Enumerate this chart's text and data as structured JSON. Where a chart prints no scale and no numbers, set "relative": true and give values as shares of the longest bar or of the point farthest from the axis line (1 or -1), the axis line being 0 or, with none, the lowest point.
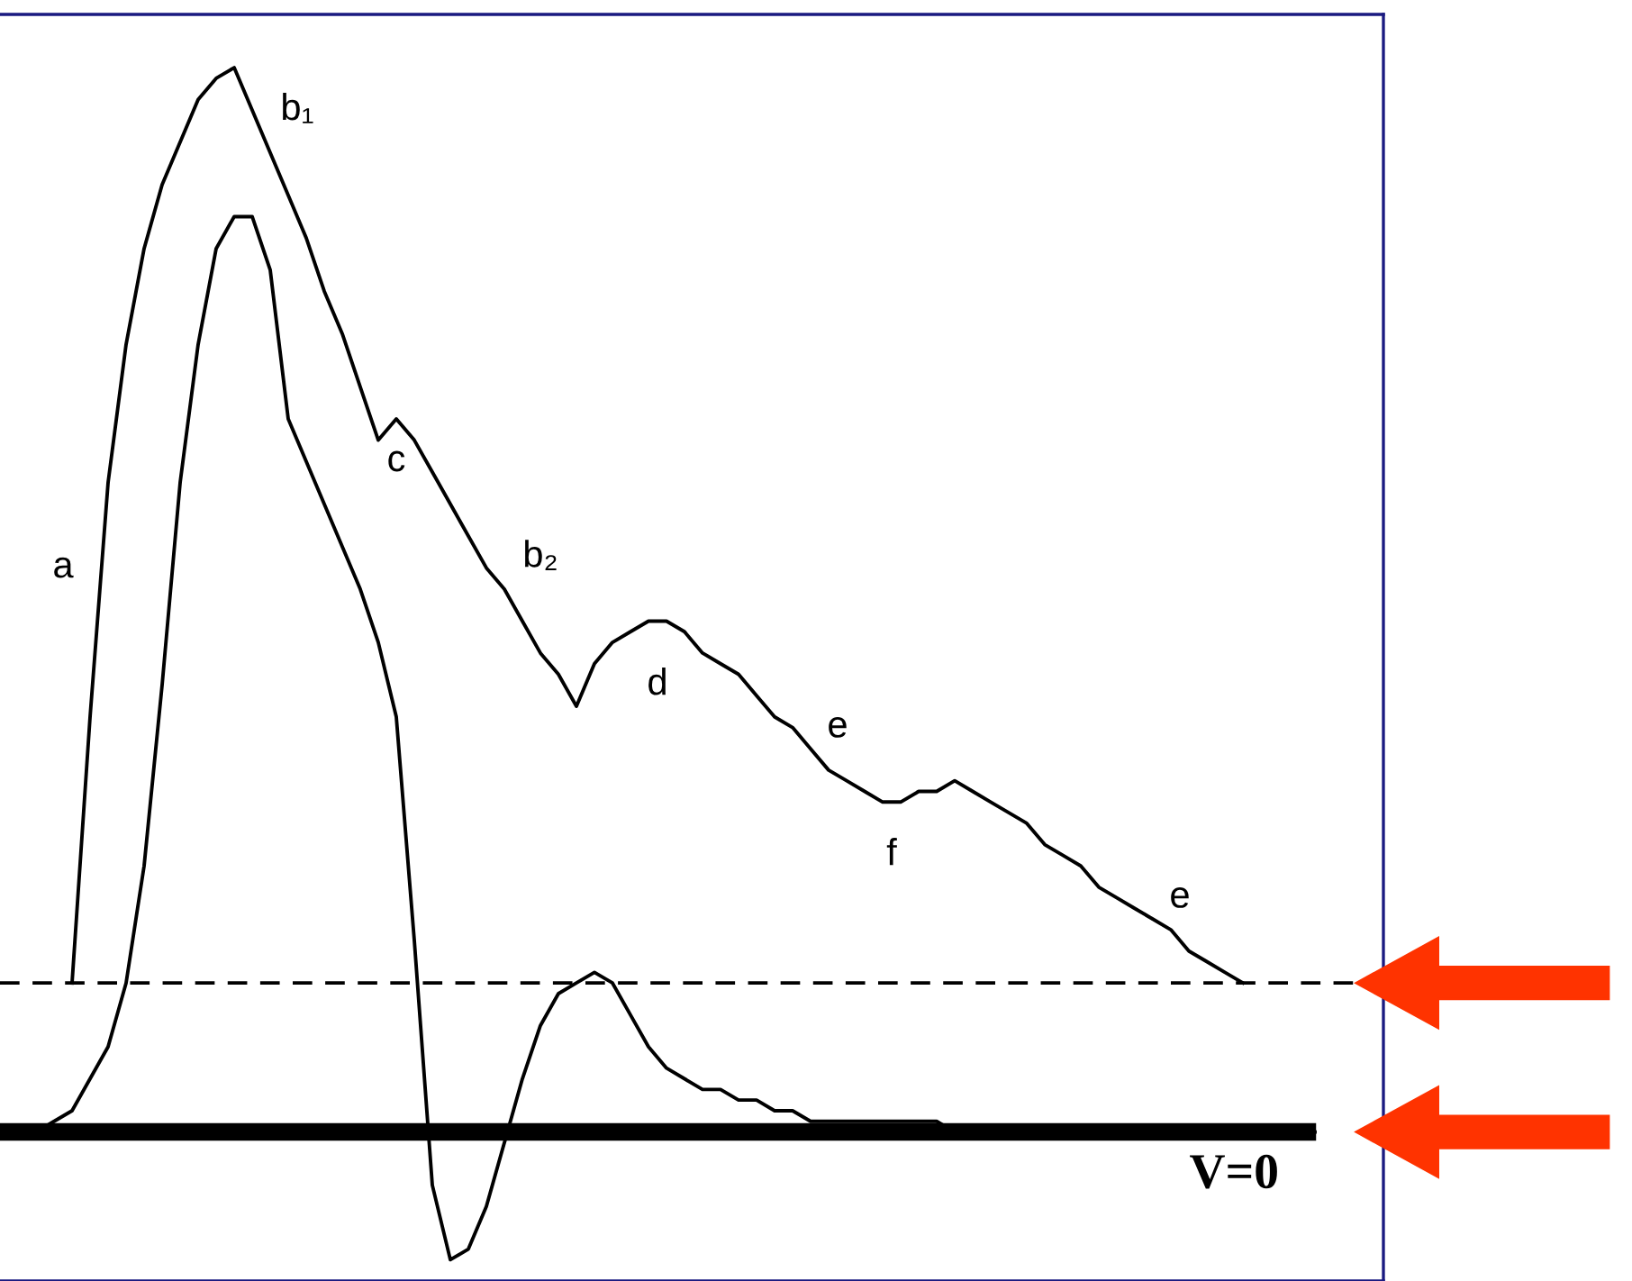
{
  "chart_data": {
    "type": "line",
    "relative": true,
    "categories": [
      null,
      null,
      null,
      null,
      null,
      null,
      null,
      null,
      null,
      null,
      null,
      null,
      null,
      null,
      null,
      null,
      null,
      null,
      null,
      null,
      null,
      null,
      null,
      null,
      null,
      null,
      null,
      null,
      null,
      null,
      null,
      null,
      null,
      null,
      null,
      null,
      null,
      null,
      null,
      null,
      null,
      null,
      null,
      null,
      null,
      null,
      null,
      null,
      null,
      null,
      null,
      null,
      null,
      null,
      null,
      null,
      null,
      null,
      null,
      null,
      null,
      null,
      null,
      null,
      null,
      null,
      null,
      null,
      null,
      null,
      null,
      null
    ],
    "series": [
      {
        "color": "#000000",
        "values": [
          null,
          null,
          0.14,
          0.39,
          0.61,
          0.74,
          0.83,
          0.89,
          0.93,
          0.97,
          0.99,
          1.0,
          0.96,
          0.92,
          0.88,
          0.84,
          0.79,
          0.75,
          0.7,
          0.65,
          0.67,
          0.65,
          0.62,
          0.59,
          0.56,
          0.53,
          0.51,
          0.48,
          0.45,
          0.43,
          0.4,
          0.44,
          0.46,
          0.47,
          0.48,
          0.48,
          0.47,
          0.45,
          0.44,
          0.43,
          0.41,
          0.39,
          0.38,
          0.36,
          0.34,
          0.33,
          0.32,
          0.31,
          0.31,
          0.32,
          0.32,
          0.33,
          0.32,
          0.31,
          0.3,
          0.29,
          0.27,
          0.26,
          0.25,
          0.23,
          0.22,
          0.21,
          0.2,
          0.19,
          0.17,
          0.16,
          0.15,
          0.14,
          null,
          null,
          null,
          null
        ]
      },
      {
        "color": "#000000",
        "values": [
          0,
          0.01,
          0.02,
          0.05,
          0.08,
          0.14,
          0.25,
          0.42,
          0.61,
          0.74,
          0.83,
          0.86,
          0.86,
          0.81,
          0.67,
          0.63,
          0.59,
          0.55,
          0.51,
          0.46,
          0.39,
          0.18,
          -0.05,
          -0.12,
          -0.11,
          -0.07,
          -0.01,
          0.05,
          0.1,
          0.13,
          0.14,
          0.15,
          0.14,
          0.11,
          0.08,
          0.06,
          0.05,
          0.04,
          0.04,
          0.03,
          0.03,
          0.02,
          0.02,
          0.01,
          0.01,
          0.01,
          0.01,
          0.01,
          0.01,
          0.01,
          0.01,
          0,
          0,
          0,
          0,
          0,
          0,
          0,
          0,
          0,
          0,
          0,
          0,
          0,
          0,
          0,
          0,
          0,
          0,
          0,
          0,
          0
        ]
      }
    ],
    "ref_lines": [
      {
        "axis": "y",
        "value": 0,
        "label": "V=0",
        "color": "#000000",
        "line_style": "solid"
      },
      {
        "axis": "y",
        "value": 0.14,
        "color": "#000000",
        "line_style": "dashed"
      }
    ],
    "annotations": [
      "a",
      "b₁",
      "c",
      "b₂",
      "d",
      "e",
      "f",
      "e"
    ],
    "line_style": "solid",
    "marker": "none"
  }
}
